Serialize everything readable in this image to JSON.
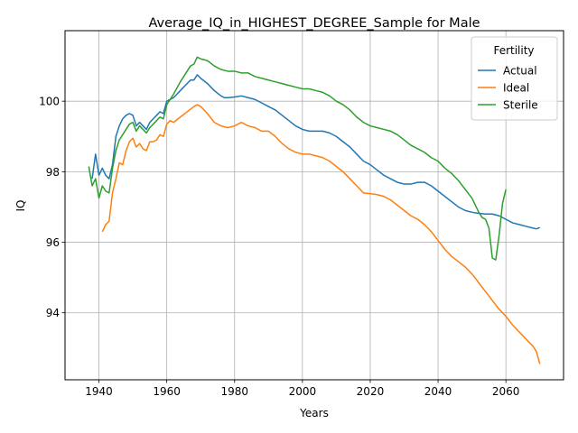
{
  "chart_data": {
    "type": "line",
    "title": "Average_IQ_in_HIGHEST_DEGREE_Sample for Male",
    "xlabel": "Years",
    "ylabel": "IQ",
    "xlim": [
      1930,
      2077
    ],
    "ylim": [
      92.1,
      102.0
    ],
    "xticks": [
      1940,
      1960,
      1980,
      2000,
      2020,
      2040,
      2060
    ],
    "yticks": [
      94,
      96,
      98,
      100
    ],
    "grid": true,
    "legend": {
      "title": "Fertility",
      "placement": "top-right"
    },
    "series": [
      {
        "name": "Actual",
        "color": "#1f77b4",
        "points": [
          [
            1938,
            97.8
          ],
          [
            1939,
            98.5
          ],
          [
            1940,
            97.9
          ],
          [
            1941,
            98.1
          ],
          [
            1942,
            97.9
          ],
          [
            1943,
            97.8
          ],
          [
            1944,
            98.2
          ],
          [
            1945,
            99.0
          ],
          [
            1946,
            99.3
          ],
          [
            1947,
            99.5
          ],
          [
            1948,
            99.6
          ],
          [
            1949,
            99.65
          ],
          [
            1950,
            99.6
          ],
          [
            1951,
            99.3
          ],
          [
            1952,
            99.4
          ],
          [
            1953,
            99.3
          ],
          [
            1954,
            99.2
          ],
          [
            1955,
            99.4
          ],
          [
            1956,
            99.5
          ],
          [
            1957,
            99.6
          ],
          [
            1958,
            99.7
          ],
          [
            1959,
            99.65
          ],
          [
            1960,
            100.0
          ],
          [
            1962,
            100.1
          ],
          [
            1964,
            100.3
          ],
          [
            1966,
            100.5
          ],
          [
            1967,
            100.6
          ],
          [
            1968,
            100.6
          ],
          [
            1969,
            100.75
          ],
          [
            1970,
            100.65
          ],
          [
            1972,
            100.5
          ],
          [
            1974,
            100.3
          ],
          [
            1976,
            100.15
          ],
          [
            1977,
            100.1
          ],
          [
            1978,
            100.1
          ],
          [
            1980,
            100.12
          ],
          [
            1982,
            100.15
          ],
          [
            1984,
            100.1
          ],
          [
            1986,
            100.05
          ],
          [
            1988,
            99.95
          ],
          [
            1990,
            99.85
          ],
          [
            1992,
            99.75
          ],
          [
            1994,
            99.6
          ],
          [
            1996,
            99.45
          ],
          [
            1998,
            99.3
          ],
          [
            2000,
            99.2
          ],
          [
            2002,
            99.15
          ],
          [
            2004,
            99.15
          ],
          [
            2006,
            99.15
          ],
          [
            2008,
            99.1
          ],
          [
            2010,
            99.0
          ],
          [
            2012,
            98.85
          ],
          [
            2014,
            98.7
          ],
          [
            2016,
            98.5
          ],
          [
            2018,
            98.3
          ],
          [
            2020,
            98.2
          ],
          [
            2022,
            98.05
          ],
          [
            2024,
            97.9
          ],
          [
            2026,
            97.8
          ],
          [
            2028,
            97.7
          ],
          [
            2030,
            97.65
          ],
          [
            2032,
            97.65
          ],
          [
            2034,
            97.7
          ],
          [
            2036,
            97.7
          ],
          [
            2038,
            97.6
          ],
          [
            2040,
            97.45
          ],
          [
            2042,
            97.3
          ],
          [
            2044,
            97.15
          ],
          [
            2046,
            97.0
          ],
          [
            2048,
            96.9
          ],
          [
            2050,
            96.85
          ],
          [
            2052,
            96.82
          ],
          [
            2054,
            96.8
          ],
          [
            2056,
            96.8
          ],
          [
            2058,
            96.75
          ],
          [
            2060,
            96.65
          ],
          [
            2062,
            96.55
          ],
          [
            2064,
            96.5
          ],
          [
            2066,
            96.45
          ],
          [
            2068,
            96.4
          ],
          [
            2069,
            96.38
          ],
          [
            2070,
            96.42
          ]
        ]
      },
      {
        "name": "Ideal",
        "color": "#ff7f0e",
        "points": [
          [
            1941,
            96.3
          ],
          [
            1942,
            96.5
          ],
          [
            1943,
            96.6
          ],
          [
            1944,
            97.4
          ],
          [
            1945,
            97.8
          ],
          [
            1946,
            98.25
          ],
          [
            1947,
            98.2
          ],
          [
            1948,
            98.6
          ],
          [
            1949,
            98.85
          ],
          [
            1950,
            98.95
          ],
          [
            1951,
            98.7
          ],
          [
            1952,
            98.8
          ],
          [
            1953,
            98.65
          ],
          [
            1954,
            98.6
          ],
          [
            1955,
            98.85
          ],
          [
            1956,
            98.85
          ],
          [
            1957,
            98.9
          ],
          [
            1958,
            99.05
          ],
          [
            1959,
            99.0
          ],
          [
            1960,
            99.35
          ],
          [
            1961,
            99.45
          ],
          [
            1962,
            99.4
          ],
          [
            1964,
            99.55
          ],
          [
            1966,
            99.7
          ],
          [
            1968,
            99.85
          ],
          [
            1969,
            99.9
          ],
          [
            1970,
            99.85
          ],
          [
            1972,
            99.65
          ],
          [
            1974,
            99.4
          ],
          [
            1976,
            99.3
          ],
          [
            1978,
            99.25
          ],
          [
            1980,
            99.3
          ],
          [
            1982,
            99.4
          ],
          [
            1984,
            99.3
          ],
          [
            1986,
            99.25
          ],
          [
            1988,
            99.15
          ],
          [
            1990,
            99.15
          ],
          [
            1992,
            99.0
          ],
          [
            1994,
            98.8
          ],
          [
            1996,
            98.65
          ],
          [
            1998,
            98.55
          ],
          [
            2000,
            98.5
          ],
          [
            2002,
            98.5
          ],
          [
            2004,
            98.45
          ],
          [
            2006,
            98.4
          ],
          [
            2008,
            98.3
          ],
          [
            2010,
            98.15
          ],
          [
            2012,
            98.0
          ],
          [
            2014,
            97.8
          ],
          [
            2016,
            97.6
          ],
          [
            2018,
            97.4
          ],
          [
            2020,
            97.38
          ],
          [
            2022,
            97.35
          ],
          [
            2024,
            97.3
          ],
          [
            2026,
            97.2
          ],
          [
            2028,
            97.05
          ],
          [
            2030,
            96.9
          ],
          [
            2032,
            96.75
          ],
          [
            2034,
            96.65
          ],
          [
            2036,
            96.5
          ],
          [
            2038,
            96.3
          ],
          [
            2040,
            96.05
          ],
          [
            2042,
            95.8
          ],
          [
            2044,
            95.6
          ],
          [
            2046,
            95.45
          ],
          [
            2048,
            95.3
          ],
          [
            2050,
            95.1
          ],
          [
            2052,
            94.85
          ],
          [
            2054,
            94.6
          ],
          [
            2056,
            94.35
          ],
          [
            2058,
            94.1
          ],
          [
            2060,
            93.9
          ],
          [
            2062,
            93.65
          ],
          [
            2064,
            93.45
          ],
          [
            2066,
            93.25
          ],
          [
            2068,
            93.05
          ],
          [
            2069,
            92.9
          ],
          [
            2070,
            92.55
          ]
        ]
      },
      {
        "name": "Sterile",
        "color": "#2ca02c",
        "points": [
          [
            1937,
            98.15
          ],
          [
            1938,
            97.6
          ],
          [
            1939,
            97.8
          ],
          [
            1940,
            97.25
          ],
          [
            1941,
            97.6
          ],
          [
            1942,
            97.45
          ],
          [
            1943,
            97.4
          ],
          [
            1944,
            98.1
          ],
          [
            1945,
            98.6
          ],
          [
            1946,
            98.9
          ],
          [
            1947,
            99.05
          ],
          [
            1948,
            99.2
          ],
          [
            1949,
            99.35
          ],
          [
            1950,
            99.4
          ],
          [
            1951,
            99.15
          ],
          [
            1952,
            99.3
          ],
          [
            1953,
            99.2
          ],
          [
            1954,
            99.1
          ],
          [
            1955,
            99.25
          ],
          [
            1956,
            99.35
          ],
          [
            1957,
            99.45
          ],
          [
            1958,
            99.55
          ],
          [
            1959,
            99.5
          ],
          [
            1960,
            99.9
          ],
          [
            1962,
            100.2
          ],
          [
            1964,
            100.55
          ],
          [
            1966,
            100.85
          ],
          [
            1967,
            101.0
          ],
          [
            1968,
            101.05
          ],
          [
            1969,
            101.25
          ],
          [
            1970,
            101.2
          ],
          [
            1972,
            101.15
          ],
          [
            1974,
            101.0
          ],
          [
            1976,
            100.9
          ],
          [
            1978,
            100.85
          ],
          [
            1980,
            100.85
          ],
          [
            1982,
            100.8
          ],
          [
            1984,
            100.8
          ],
          [
            1986,
            100.7
          ],
          [
            1988,
            100.65
          ],
          [
            1990,
            100.6
          ],
          [
            1992,
            100.55
          ],
          [
            1994,
            100.5
          ],
          [
            1996,
            100.45
          ],
          [
            1998,
            100.4
          ],
          [
            2000,
            100.35
          ],
          [
            2002,
            100.35
          ],
          [
            2004,
            100.3
          ],
          [
            2006,
            100.25
          ],
          [
            2008,
            100.15
          ],
          [
            2010,
            100.0
          ],
          [
            2012,
            99.9
          ],
          [
            2014,
            99.75
          ],
          [
            2016,
            99.55
          ],
          [
            2018,
            99.4
          ],
          [
            2020,
            99.3
          ],
          [
            2022,
            99.25
          ],
          [
            2024,
            99.2
          ],
          [
            2026,
            99.15
          ],
          [
            2028,
            99.05
          ],
          [
            2030,
            98.9
          ],
          [
            2032,
            98.75
          ],
          [
            2034,
            98.65
          ],
          [
            2036,
            98.55
          ],
          [
            2038,
            98.4
          ],
          [
            2040,
            98.3
          ],
          [
            2042,
            98.1
          ],
          [
            2044,
            97.95
          ],
          [
            2046,
            97.75
          ],
          [
            2048,
            97.5
          ],
          [
            2050,
            97.25
          ],
          [
            2052,
            96.85
          ],
          [
            2053,
            96.7
          ],
          [
            2054,
            96.65
          ],
          [
            2055,
            96.4
          ],
          [
            2056,
            95.55
          ],
          [
            2057,
            95.5
          ],
          [
            2058,
            96.2
          ],
          [
            2059,
            97.1
          ],
          [
            2060,
            97.5
          ]
        ]
      }
    ]
  }
}
